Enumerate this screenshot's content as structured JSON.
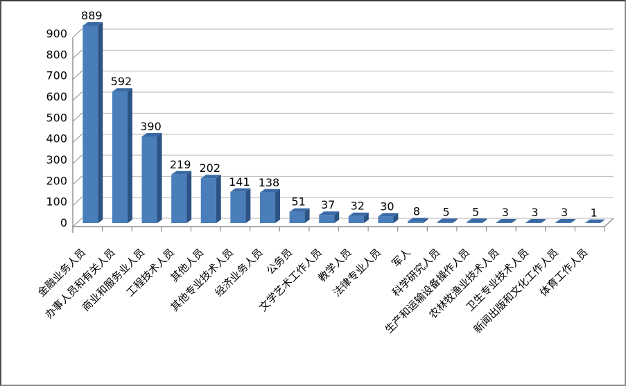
{
  "chart_data": {
    "type": "bar",
    "style": "3d-clustered-column",
    "title": "",
    "xlabel": "",
    "ylabel": "",
    "categories": [
      "金融业务人员",
      "办事人员和有关人员",
      "商业和服务业人员",
      "工程技术人员",
      "其他人员",
      "其他专业技术人员",
      "经济业务人员",
      "公务员",
      "文学艺术工作人员",
      "教学人员",
      "法律专业人员",
      "军人",
      "科学研究人员",
      "生产和运输设备操作人员",
      "农林牧渔业技术人员",
      "卫生专业技术人员",
      "新闻出版和文化工作人员",
      "体育工作人员"
    ],
    "values": [
      889,
      592,
      390,
      219,
      202,
      141,
      138,
      51,
      37,
      32,
      30,
      8,
      5,
      5,
      3,
      3,
      3,
      1
    ],
    "data_labels": [
      889,
      592,
      390,
      219,
      202,
      141,
      138,
      51,
      37,
      32,
      30,
      8,
      5,
      5,
      3,
      3,
      3,
      1
    ],
    "ylim": [
      0,
      900
    ],
    "yticks": [
      0,
      100,
      200,
      300,
      400,
      500,
      600,
      700,
      800,
      900
    ],
    "grid": true,
    "legend": "none",
    "x_label_rotation_deg": 45,
    "colors": {
      "bar_front": "#4a7ebb",
      "bar_top": "#3a6aa5",
      "bar_side": "#2d5384",
      "bar_top_highlight": "#aac4e4",
      "gridline": "#b3b3b3",
      "axis": "#8c8c8c",
      "text": "#000000",
      "background": "#ffffff"
    }
  }
}
